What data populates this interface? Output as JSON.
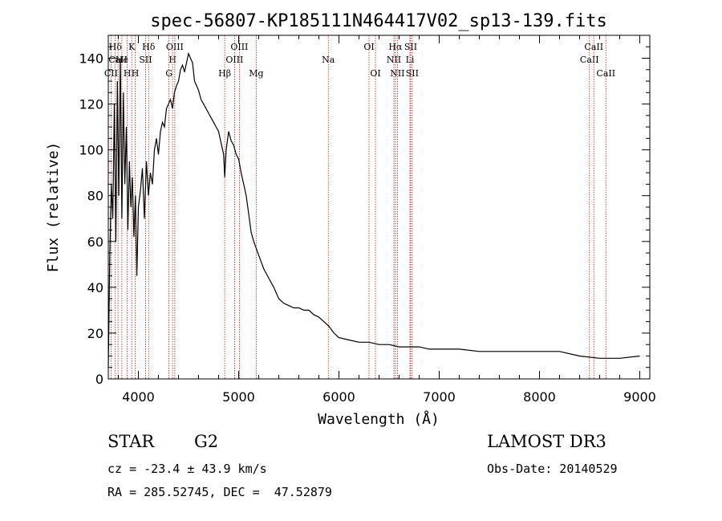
{
  "chart_data": {
    "type": "line",
    "title": "spec-56807-KP185111N464417V02_sp13-139.fits",
    "xlabel": "Wavelength (Å)",
    "ylabel": "Flux (relative)",
    "xlim": [
      3700,
      9100
    ],
    "ylim": [
      0,
      150
    ],
    "x_ticks": [
      4000,
      5000,
      6000,
      7000,
      8000,
      9000
    ],
    "y_ticks": [
      0,
      20,
      40,
      60,
      80,
      100,
      120,
      140
    ],
    "series": [
      {
        "name": "flux",
        "x": [
          3700,
          3715,
          3730,
          3745,
          3760,
          3775,
          3790,
          3805,
          3820,
          3835,
          3850,
          3865,
          3880,
          3895,
          3910,
          3925,
          3940,
          3955,
          3970,
          3985,
          4000,
          4020,
          4040,
          4060,
          4080,
          4100,
          4120,
          4140,
          4160,
          4180,
          4200,
          4220,
          4240,
          4260,
          4280,
          4300,
          4320,
          4340,
          4360,
          4380,
          4400,
          4420,
          4440,
          4460,
          4480,
          4500,
          4520,
          4540,
          4560,
          4580,
          4600,
          4625,
          4650,
          4675,
          4700,
          4725,
          4750,
          4775,
          4800,
          4825,
          4850,
          4861,
          4875,
          4900,
          4925,
          4950,
          4975,
          5000,
          5025,
          5050,
          5075,
          5100,
          5125,
          5150,
          5175,
          5200,
          5250,
          5300,
          5350,
          5400,
          5450,
          5500,
          5550,
          5600,
          5650,
          5700,
          5750,
          5800,
          5850,
          5900,
          5950,
          6000,
          6100,
          6200,
          6300,
          6400,
          6500,
          6600,
          6700,
          6800,
          6900,
          7000,
          7200,
          7400,
          7600,
          7800,
          8000,
          8200,
          8400,
          8600,
          8800,
          9000
        ],
        "y": [
          5,
          55,
          85,
          70,
          120,
          60,
          130,
          80,
          140,
          70,
          125,
          85,
          110,
          65,
          95,
          75,
          88,
          62,
          80,
          45,
          75,
          82,
          92,
          70,
          95,
          80,
          90,
          85,
          100,
          105,
          98,
          108,
          112,
          110,
          118,
          120,
          122,
          118,
          125,
          128,
          130,
          135,
          137,
          134,
          138,
          142,
          140,
          138,
          130,
          128,
          126,
          122,
          120,
          118,
          116,
          114,
          112,
          110,
          108,
          103,
          98,
          88,
          100,
          108,
          104,
          102,
          98,
          96,
          90,
          85,
          80,
          72,
          64,
          60,
          57,
          54,
          48,
          44,
          40,
          35,
          33,
          32,
          31,
          31,
          30,
          30,
          28,
          27,
          25,
          23,
          20,
          18,
          17,
          16,
          16,
          15,
          15,
          14,
          14,
          14,
          13,
          13,
          13,
          12,
          12,
          12,
          12,
          12,
          10,
          9,
          9,
          10
        ]
      }
    ],
    "spectral_lines": [
      {
        "label": "CII",
        "wave": 3727,
        "row": 3
      },
      {
        "label": "Hδ",
        "wave": 3770,
        "row": 1
      },
      {
        "label": "CaII",
        "wave": 3797,
        "row": 2
      },
      {
        "label": "He",
        "wave": 3835,
        "row": 2
      },
      {
        "label": "H",
        "wave": 3889,
        "row": 3
      },
      {
        "label": "K",
        "wave": 3934,
        "row": 1
      },
      {
        "label": "H",
        "wave": 3968,
        "row": 3
      },
      {
        "label": "SII",
        "wave": 4072,
        "row": 2
      },
      {
        "label": "Hδ",
        "wave": 4102,
        "row": 1
      },
      {
        "label": "G",
        "wave": 4305,
        "row": 3
      },
      {
        "label": "H",
        "wave": 4341,
        "row": 2
      },
      {
        "label": "OIII",
        "wave": 4363,
        "row": 1
      },
      {
        "label": "Hβ",
        "wave": 4861,
        "row": 3
      },
      {
        "label": "OIII",
        "wave": 4959,
        "row": 2
      },
      {
        "label": "OIII",
        "wave": 5007,
        "row": 1
      },
      {
        "label": "Mg",
        "wave": 5175,
        "row": 3
      },
      {
        "label": "Na",
        "wave": 5894,
        "row": 2
      },
      {
        "label": "OI",
        "wave": 6300,
        "row": 1
      },
      {
        "label": "OI",
        "wave": 6364,
        "row": 3
      },
      {
        "label": "NII",
        "wave": 6548,
        "row": 2
      },
      {
        "label": "Hα",
        "wave": 6563,
        "row": 1
      },
      {
        "label": "NII",
        "wave": 6583,
        "row": 3
      },
      {
        "label": "SII",
        "wave": 6716,
        "row": 1
      },
      {
        "label": "Li",
        "wave": 6708,
        "row": 2
      },
      {
        "label": "SII",
        "wave": 6731,
        "row": 3
      },
      {
        "label": "CaII",
        "wave": 8498,
        "row": 2
      },
      {
        "label": "CaII",
        "wave": 8542,
        "row": 1
      },
      {
        "label": "CaII",
        "wave": 8662,
        "row": 3
      }
    ],
    "line_color": "#000000",
    "marker_color": "#b22222"
  },
  "info": {
    "object_type": "STAR",
    "subclass": "G2",
    "redshift": "cz = -23.4 ± 43.9 km/s",
    "coords": "RA = 285.52745, DEC =  47.52879",
    "survey": "LAMOST DR3",
    "obs_date": "Obs-Date: 20140529"
  }
}
